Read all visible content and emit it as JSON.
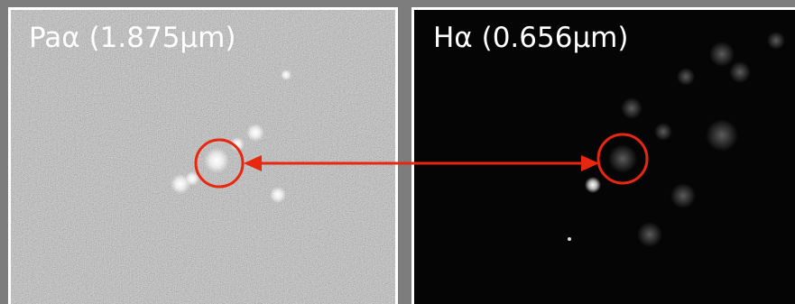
{
  "panels": [
    {
      "label": "Paα (1.875μm)"
    },
    {
      "label": "Hα (0.656μm)"
    }
  ]
}
